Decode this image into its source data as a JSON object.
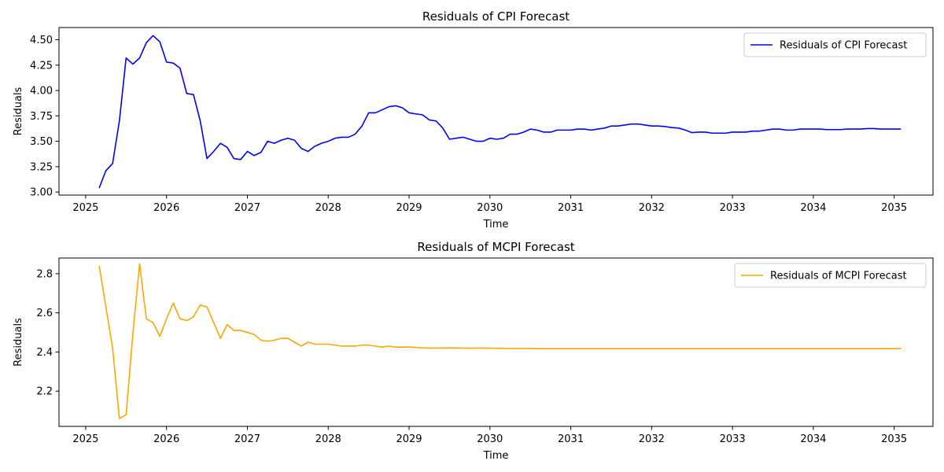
{
  "chart_data": [
    {
      "type": "line",
      "title": "Residuals of CPI Forecast",
      "xlabel": "Time",
      "ylabel": "Residuals",
      "xlim": [
        2024.67,
        2035.48
      ],
      "ylim": [
        2.97,
        4.62
      ],
      "xticks": [
        2025,
        2026,
        2027,
        2028,
        2029,
        2030,
        2031,
        2032,
        2033,
        2034,
        2035
      ],
      "yticks": [
        3.0,
        3.25,
        3.5,
        3.75,
        4.0,
        4.25,
        4.5
      ],
      "ytick_labels": [
        "3.00",
        "3.25",
        "3.50",
        "3.75",
        "4.00",
        "4.25",
        "4.50"
      ],
      "grid": false,
      "legend_position": "top-right",
      "series": [
        {
          "name": "Residuals of CPI Forecast",
          "color": "#0000ff",
          "x": [
            2025.167,
            2025.25,
            2025.333,
            2025.417,
            2025.5,
            2025.583,
            2025.667,
            2025.75,
            2025.833,
            2025.917,
            2026.0,
            2026.083,
            2026.167,
            2026.25,
            2026.333,
            2026.417,
            2026.5,
            2026.583,
            2026.667,
            2026.75,
            2026.833,
            2026.917,
            2027.0,
            2027.083,
            2027.167,
            2027.25,
            2027.333,
            2027.417,
            2027.5,
            2027.583,
            2027.667,
            2027.75,
            2027.833,
            2027.917,
            2028.0,
            2028.083,
            2028.167,
            2028.25,
            2028.333,
            2028.417,
            2028.5,
            2028.583,
            2028.667,
            2028.75,
            2028.833,
            2028.917,
            2029.0,
            2029.083,
            2029.167,
            2029.25,
            2029.333,
            2029.417,
            2029.5,
            2029.583,
            2029.667,
            2029.75,
            2029.833,
            2029.917,
            2030.0,
            2030.083,
            2030.167,
            2030.25,
            2030.333,
            2030.417,
            2030.5,
            2030.583,
            2030.667,
            2030.75,
            2030.833,
            2030.917,
            2031.0,
            2031.083,
            2031.167,
            2031.25,
            2031.333,
            2031.417,
            2031.5,
            2031.583,
            2031.667,
            2031.75,
            2031.833,
            2031.917,
            2032.0,
            2032.083,
            2032.167,
            2032.25,
            2032.333,
            2032.417,
            2032.5,
            2032.583,
            2032.667,
            2032.75,
            2032.833,
            2032.917,
            2033.0,
            2033.083,
            2033.167,
            2033.25,
            2033.333,
            2033.417,
            2033.5,
            2033.583,
            2033.667,
            2033.75,
            2033.833,
            2033.917,
            2034.0,
            2034.083,
            2034.167,
            2034.25,
            2034.333,
            2034.417,
            2034.5,
            2034.583,
            2034.667,
            2034.75,
            2034.833,
            2034.917,
            2035.0,
            2035.083
          ],
          "y": [
            3.04,
            3.21,
            3.28,
            3.7,
            4.32,
            4.26,
            4.32,
            4.47,
            4.54,
            4.48,
            4.28,
            4.27,
            4.22,
            3.97,
            3.96,
            3.7,
            3.33,
            3.4,
            3.48,
            3.44,
            3.33,
            3.32,
            3.4,
            3.36,
            3.39,
            3.5,
            3.48,
            3.51,
            3.53,
            3.51,
            3.43,
            3.4,
            3.45,
            3.48,
            3.5,
            3.53,
            3.54,
            3.54,
            3.57,
            3.65,
            3.78,
            3.78,
            3.81,
            3.84,
            3.85,
            3.83,
            3.78,
            3.77,
            3.76,
            3.71,
            3.7,
            3.63,
            3.52,
            3.53,
            3.54,
            3.52,
            3.5,
            3.5,
            3.53,
            3.52,
            3.53,
            3.57,
            3.57,
            3.59,
            3.62,
            3.61,
            3.59,
            3.59,
            3.61,
            3.61,
            3.61,
            3.62,
            3.62,
            3.61,
            3.62,
            3.63,
            3.65,
            3.65,
            3.66,
            3.67,
            3.67,
            3.66,
            3.65,
            3.65,
            3.645,
            3.635,
            3.63,
            3.61,
            3.585,
            3.59,
            3.59,
            3.58,
            3.58,
            3.58,
            3.59,
            3.59,
            3.59,
            3.6,
            3.6,
            3.61,
            3.62,
            3.62,
            3.61,
            3.61,
            3.62,
            3.62,
            3.62,
            3.62,
            3.615,
            3.615,
            3.615,
            3.62,
            3.62,
            3.62,
            3.625,
            3.625,
            3.62,
            3.62,
            3.62,
            3.62
          ]
        }
      ]
    },
    {
      "type": "line",
      "title": "Residuals of MCPI Forecast",
      "xlabel": "Time",
      "ylabel": "Residuals",
      "xlim": [
        2024.67,
        2035.48
      ],
      "ylim": [
        2.02,
        2.88
      ],
      "xticks": [
        2025,
        2026,
        2027,
        2028,
        2029,
        2030,
        2031,
        2032,
        2033,
        2034,
        2035
      ],
      "yticks": [
        2.2,
        2.4,
        2.6,
        2.8
      ],
      "ytick_labels": [
        "2.2",
        "2.4",
        "2.6",
        "2.8"
      ],
      "grid": false,
      "legend_position": "top-right",
      "series": [
        {
          "name": "Residuals of MCPI Forecast",
          "color": "#ffa500",
          "x": [
            2025.167,
            2025.25,
            2025.333,
            2025.417,
            2025.5,
            2025.583,
            2025.667,
            2025.75,
            2025.833,
            2025.917,
            2026.0,
            2026.083,
            2026.167,
            2026.25,
            2026.333,
            2026.417,
            2026.5,
            2026.583,
            2026.667,
            2026.75,
            2026.833,
            2026.917,
            2027.0,
            2027.083,
            2027.167,
            2027.25,
            2027.333,
            2027.417,
            2027.5,
            2027.583,
            2027.667,
            2027.75,
            2027.833,
            2027.917,
            2028.0,
            2028.083,
            2028.167,
            2028.25,
            2028.333,
            2028.417,
            2028.5,
            2028.583,
            2028.667,
            2028.75,
            2028.833,
            2028.917,
            2029.0,
            2029.083,
            2029.167,
            2029.25,
            2029.333,
            2029.417,
            2029.5,
            2029.583,
            2029.667,
            2029.75,
            2029.833,
            2029.917,
            2030.0,
            2030.083,
            2030.167,
            2030.25,
            2030.333,
            2030.417,
            2030.5,
            2030.583,
            2030.667,
            2030.75,
            2030.833,
            2030.917,
            2031.0,
            2031.083,
            2031.167,
            2031.25,
            2031.333,
            2031.417,
            2031.5,
            2031.583,
            2031.667,
            2031.75,
            2031.833,
            2031.917,
            2032.0,
            2032.083,
            2032.167,
            2032.25,
            2032.333,
            2032.417,
            2032.5,
            2032.583,
            2032.667,
            2032.75,
            2032.833,
            2032.917,
            2033.0,
            2033.083,
            2033.167,
            2033.25,
            2033.333,
            2033.417,
            2033.5,
            2033.583,
            2033.667,
            2033.75,
            2033.833,
            2033.917,
            2034.0,
            2034.083,
            2034.167,
            2034.25,
            2034.333,
            2034.417,
            2034.5,
            2034.583,
            2034.667,
            2034.75,
            2034.833,
            2034.917,
            2035.0,
            2035.083
          ],
          "y": [
            2.84,
            2.63,
            2.42,
            2.06,
            2.08,
            2.49,
            2.85,
            2.57,
            2.55,
            2.48,
            2.57,
            2.65,
            2.57,
            2.56,
            2.58,
            2.64,
            2.63,
            2.55,
            2.47,
            2.54,
            2.51,
            2.51,
            2.5,
            2.49,
            2.46,
            2.455,
            2.46,
            2.47,
            2.47,
            2.45,
            2.43,
            2.45,
            2.44,
            2.44,
            2.44,
            2.435,
            2.43,
            2.43,
            2.43,
            2.435,
            2.435,
            2.43,
            2.425,
            2.43,
            2.425,
            2.425,
            2.425,
            2.423,
            2.421,
            2.42,
            2.42,
            2.42,
            2.421,
            2.42,
            2.42,
            2.419,
            2.42,
            2.42,
            2.419,
            2.419,
            2.418,
            2.418,
            2.418,
            2.418,
            2.418,
            2.417,
            2.417,
            2.417,
            2.417,
            2.417,
            2.417,
            2.417,
            2.417,
            2.417,
            2.417,
            2.417,
            2.417,
            2.417,
            2.417,
            2.417,
            2.417,
            2.417,
            2.417,
            2.417,
            2.417,
            2.417,
            2.417,
            2.417,
            2.417,
            2.417,
            2.417,
            2.417,
            2.417,
            2.417,
            2.417,
            2.417,
            2.417,
            2.417,
            2.417,
            2.417,
            2.417,
            2.417,
            2.417,
            2.417,
            2.417,
            2.417,
            2.417,
            2.417,
            2.417,
            2.417,
            2.417,
            2.417,
            2.417,
            2.417,
            2.417,
            2.417,
            2.417,
            2.417,
            2.417,
            2.417
          ]
        }
      ]
    }
  ]
}
